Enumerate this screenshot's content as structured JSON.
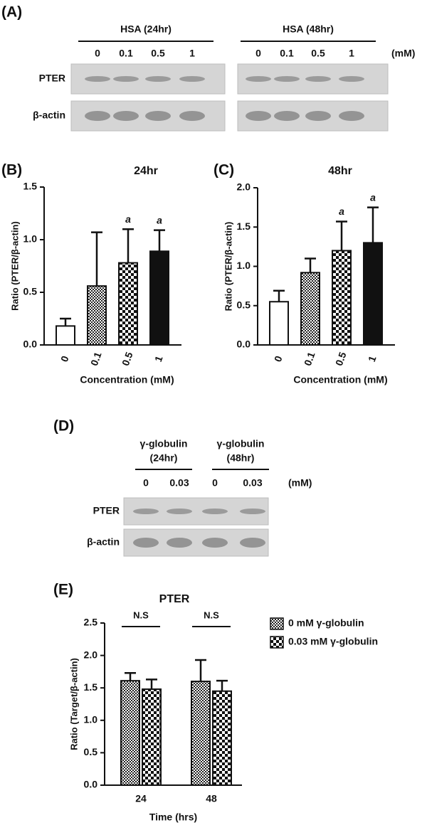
{
  "panel_a": {
    "label": "(A)",
    "unit": "(mM)",
    "rows": [
      "PTER",
      "β-actin"
    ],
    "groups": [
      {
        "name": "HSA (24hr)",
        "lanes": [
          "0",
          "0.1",
          "0.5",
          "1"
        ]
      },
      {
        "name": "HSA (48hr)",
        "lanes": [
          "0",
          "0.1",
          "0.5",
          "1"
        ]
      }
    ]
  },
  "panel_d": {
    "label": "(D)",
    "unit": "(mM)",
    "rows": [
      "PTER",
      "β-actin"
    ],
    "groups": [
      {
        "name": "γ-globulin",
        "period": "(24hr)",
        "lanes": [
          "0",
          "0.03"
        ]
      },
      {
        "name": "γ-globulin",
        "period": "(48hr)",
        "lanes": [
          "0",
          "0.03"
        ]
      }
    ]
  },
  "chart_data": [
    {
      "type": "bar",
      "panel": "(B)",
      "title": "24hr",
      "x_label": "Concentration (mM)",
      "y_label": "Ratio (PTER/β-actin)",
      "categories": [
        "0",
        "0.1",
        "0.5",
        "1"
      ],
      "values": [
        0.18,
        0.56,
        0.78,
        0.89
      ],
      "errors": [
        0.07,
        0.51,
        0.32,
        0.2
      ],
      "patterns": [
        "white",
        "checker-fine",
        "checker-coarse",
        "black"
      ],
      "annotations": [
        {
          "category": "0.5",
          "text": "a"
        },
        {
          "category": "1",
          "text": "a"
        }
      ],
      "ylim": [
        0,
        1.5
      ],
      "yticks": [
        {
          "value": 0,
          "label": "0.0"
        },
        0.5,
        {
          "value": 1,
          "label": "1.0"
        },
        1.5
      ]
    },
    {
      "type": "bar",
      "panel": "(C)",
      "title": "48hr",
      "x_label": "Concentration (mM)",
      "y_label": "Ratio (PTER/β-actin)",
      "categories": [
        "0",
        "0.1",
        "0.5",
        "1"
      ],
      "values": [
        0.55,
        0.92,
        1.2,
        1.3
      ],
      "errors": [
        0.14,
        0.18,
        0.37,
        0.45
      ],
      "patterns": [
        "white",
        "checker-fine",
        "checker-coarse",
        "black"
      ],
      "annotations": [
        {
          "category": "0.5",
          "text": "a"
        },
        {
          "category": "1",
          "text": "a"
        }
      ],
      "ylim": [
        0,
        2
      ],
      "yticks": [
        {
          "value": 0,
          "label": "0.0"
        },
        0.5,
        {
          "value": 1,
          "label": "1.0"
        },
        1.5,
        {
          "value": 2,
          "label": "2.0"
        }
      ]
    },
    {
      "type": "bar",
      "panel": "(E)",
      "title": "PTER",
      "x_label": "Time (hrs)",
      "y_label": "Ratio (Target/β-actin)",
      "categories": [
        "24",
        "48"
      ],
      "series": [
        {
          "name": "0 mM γ-globulin",
          "pattern": "checker-fine",
          "values": [
            1.61,
            1.6
          ],
          "errors": [
            0.12,
            0.33
          ]
        },
        {
          "name": "0.03 mM γ-globulin",
          "pattern": "checker-coarse",
          "values": [
            1.48,
            1.45
          ],
          "errors": [
            0.15,
            0.16
          ]
        }
      ],
      "annotations": [
        {
          "category": "24",
          "text": "N.S"
        },
        {
          "category": "48",
          "text": "N.S"
        }
      ],
      "ylim": [
        0,
        2.5
      ],
      "yticks": [
        {
          "value": 0,
          "label": "0.0"
        },
        0.5,
        {
          "value": 1,
          "label": "1.0"
        },
        1.5,
        {
          "value": 2,
          "label": "2.0"
        },
        2.5
      ]
    }
  ]
}
